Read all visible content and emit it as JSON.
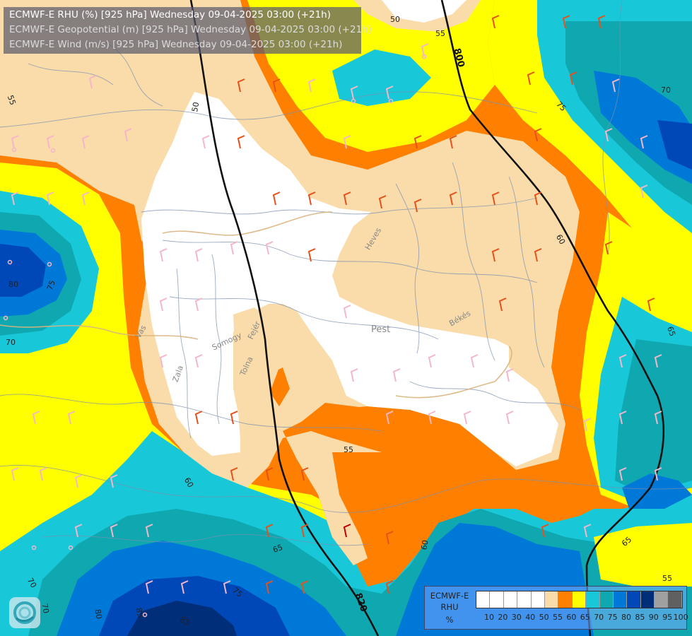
{
  "header": {
    "line1": "ECMWF-E RHU (%) [925 hPa] Wednesday 09-04-2025 03:00 (+21h)",
    "line2": "ECMWF-E Geopotential (m) [925 hPa] Wednesday 09-04-2025 03:00 (+21h)",
    "line3": "ECMWF-E Wind (m/s) [925 hPa] Wednesday 09-04-2025 03:00 (+21h)"
  },
  "legend": {
    "line1": "ECMWF-E",
    "line2": "RHU",
    "line3": "%",
    "ticks": [
      "10",
      "20",
      "30",
      "40",
      "50",
      "55",
      "60",
      "65",
      "70",
      "75",
      "80",
      "85",
      "90",
      "95",
      "100"
    ],
    "colors": [
      "#ffffff",
      "#ffffff",
      "#ffffff",
      "#ffffff",
      "#ffffff",
      "#f9dcaa",
      "#ff8000",
      "#ffff00",
      "#18c8d8",
      "#10a8b0",
      "#0078d8",
      "#0048b8",
      "#002e78",
      "#a0a0a0",
      "#606060"
    ]
  },
  "map_labels": {
    "regions": [
      "Heves",
      "Pest",
      "Békés",
      "Vas",
      "Somogy",
      "Fejér",
      "Zala",
      "Tolna"
    ],
    "rhu_contours": [
      "50",
      "55",
      "55",
      "50",
      "60",
      "80",
      "75",
      "70",
      "75",
      "70",
      "70",
      "80",
      "85",
      "85",
      "65",
      "65",
      "55",
      "60",
      "60",
      "65",
      "70",
      "75",
      "55"
    ],
    "geopotential_contours": [
      "800",
      "820"
    ]
  },
  "colors": {
    "white": "#ffffff",
    "tan": "#f9dcaa",
    "orange": "#ff8000",
    "yellow": "#ffff00",
    "cyan": "#18c8d8",
    "teal": "#10a8b0",
    "blue": "#0078d8",
    "darkblue": "#0048b8",
    "navy": "#002e78"
  }
}
